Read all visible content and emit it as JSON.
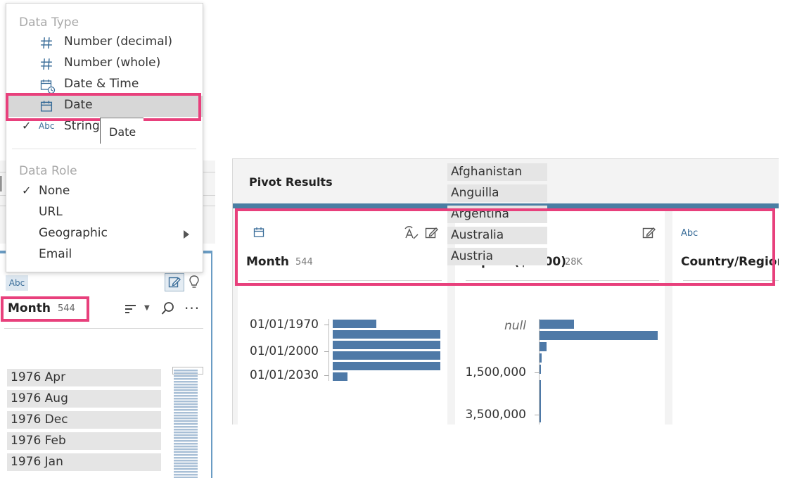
{
  "menu": {
    "data_type_title": "Data Type",
    "data_types": [
      {
        "label": "Number (decimal)",
        "icon": "hash-icon"
      },
      {
        "label": "Number (whole)",
        "icon": "hash-icon"
      },
      {
        "label": "Date & Time",
        "icon": "calendar-clock-icon"
      },
      {
        "label": "Date",
        "icon": "calendar-icon"
      },
      {
        "label": "String",
        "icon": "abc-icon",
        "badge": "Abc",
        "checked": true
      }
    ],
    "tooltip": "Date",
    "data_role_title": "Data Role",
    "data_roles": [
      {
        "label": "None",
        "checked": true
      },
      {
        "label": "URL"
      },
      {
        "label": "Geographic",
        "submenu": true
      },
      {
        "label": "Email"
      }
    ],
    "check_mark": "✓"
  },
  "left_card": {
    "type_badge": "Abc",
    "field_name": "Month",
    "field_count": "544",
    "more": "···",
    "values": [
      "1976 Apr",
      "1976 Aug",
      "1976 Dec",
      "1976 Feb",
      "1976 Jan"
    ]
  },
  "pivot": {
    "title": "Pivot Results",
    "columns": [
      {
        "name": "Month",
        "count": "544",
        "type": "calendar-icon",
        "axis_labels": [
          "01/01/1970",
          "01/01/2000",
          "01/01/2030"
        ]
      },
      {
        "name": "Import ($1000)",
        "count": "28K",
        "type": "hash-icon",
        "axis_labels": [
          "null",
          "1,500,000",
          "3,500,000"
        ]
      },
      {
        "name": "Country/Region",
        "count": "",
        "type": "abc-icon",
        "badge": "Abc",
        "values": [
          "Afghanistan",
          "Anguilla",
          "Argentina",
          "Australia",
          "Austria"
        ]
      }
    ]
  },
  "colors": {
    "accent": "#4e79a7",
    "highlight": "#e8407c",
    "card_border": "#6a9cc4"
  }
}
